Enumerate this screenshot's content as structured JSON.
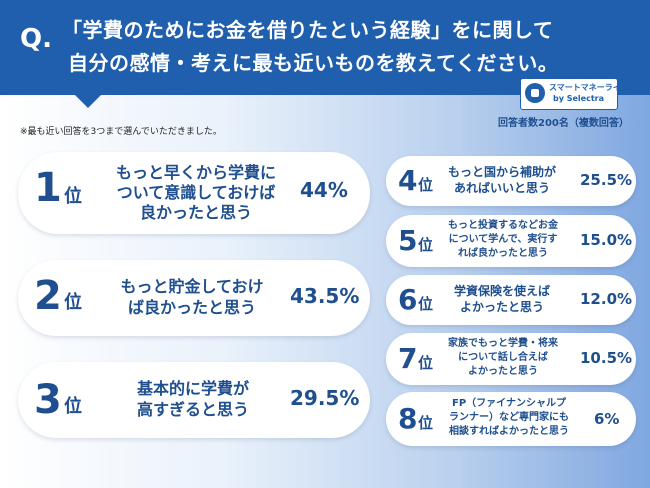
{
  "question": {
    "mark": "Q.",
    "line1": "「学費のためにお金を借りたという経験」をに関して",
    "line2": "自分の感情・考えに最も近いものを教えてください。"
  },
  "logo": {
    "main": "スマートマネーライフ",
    "sub": "by Selectra"
  },
  "respondents": "回答者数200名（複数回答）",
  "note": "※最も近い回答を3つまで選んでいただきました。",
  "rank_suffix": "位",
  "items": [
    {
      "rank": "1",
      "lines": [
        "もっと早くから学費に",
        "ついて意識しておけば",
        "良かったと思う"
      ],
      "pct": "44%",
      "value": 44
    },
    {
      "rank": "2",
      "lines": [
        "もっと貯金しておけ",
        "ば良かったと思う"
      ],
      "pct": "43.5%",
      "value": 43.5
    },
    {
      "rank": "3",
      "lines": [
        "基本的に学費が",
        "高すぎると思う"
      ],
      "pct": "29.5%",
      "value": 29.5
    },
    {
      "rank": "4",
      "lines": [
        "もっと国から補助が",
        "あればいいと思う"
      ],
      "pct": "25.5%",
      "value": 25.5
    },
    {
      "rank": "5",
      "lines": [
        "もっと投資するなどお金",
        "について学んで、実行す",
        "れば良かったと思う"
      ],
      "pct": "15.0%",
      "value": 15.0
    },
    {
      "rank": "6",
      "lines": [
        "学資保険を使えば",
        "よかったと思う"
      ],
      "pct": "12.0%",
      "value": 12.0
    },
    {
      "rank": "7",
      "lines": [
        "家族でもっと学費・将来",
        "について話し合えば",
        "よかったと思う"
      ],
      "pct": "10.5%",
      "value": 10.5
    },
    {
      "rank": "8",
      "lines": [
        "FP（ファイナンシャルプ",
        "ランナー）など専門家にも",
        "相談すればよかったと思う"
      ],
      "pct": "6%",
      "value": 6
    }
  ],
  "colors": {
    "header": "#1f5fae",
    "text": "#1f4f8f",
    "card": "#ffffff"
  }
}
